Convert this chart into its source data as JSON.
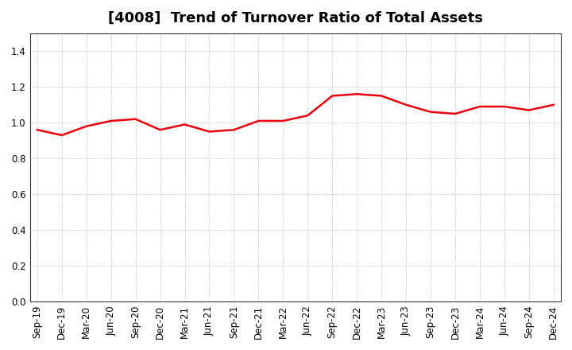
{
  "title": "[4008]  Trend of Turnover Ratio of Total Assets",
  "x_labels": [
    "Sep-19",
    "Dec-19",
    "Mar-20",
    "Jun-20",
    "Sep-20",
    "Dec-20",
    "Mar-21",
    "Jun-21",
    "Sep-21",
    "Dec-21",
    "Mar-22",
    "Jun-22",
    "Sep-22",
    "Dec-22",
    "Mar-23",
    "Jun-23",
    "Sep-23",
    "Dec-23",
    "Mar-24",
    "Jun-24",
    "Sep-24",
    "Dec-24"
  ],
  "y_values": [
    0.96,
    0.93,
    0.98,
    1.01,
    1.02,
    0.96,
    0.99,
    0.95,
    0.96,
    1.01,
    1.01,
    1.04,
    1.15,
    1.16,
    1.15,
    1.1,
    1.06,
    1.05,
    1.09,
    1.09,
    1.07,
    1.1
  ],
  "line_color": "#e8000d",
  "background_color": "#ffffff",
  "plot_bg_color": "#ffffff",
  "grid_color": "#999999",
  "ylim": [
    0.0,
    1.5
  ],
  "yticks": [
    0.0,
    0.2,
    0.4,
    0.6,
    0.8,
    1.0,
    1.2,
    1.4
  ],
  "title_fontsize": 13,
  "tick_fontsize": 8.5,
  "line_width": 1.8
}
